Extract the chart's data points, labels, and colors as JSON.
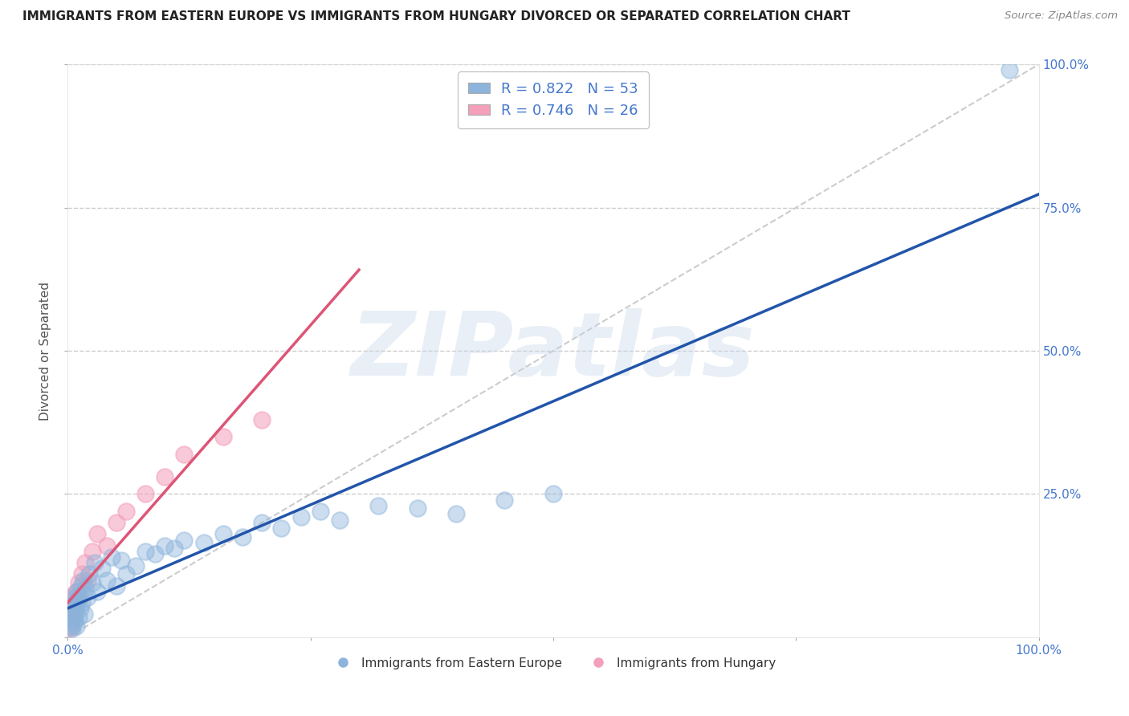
{
  "title": "IMMIGRANTS FROM EASTERN EUROPE VS IMMIGRANTS FROM HUNGARY DIVORCED OR SEPARATED CORRELATION CHART",
  "source": "Source: ZipAtlas.com",
  "xlabel_blue": "Immigrants from Eastern Europe",
  "xlabel_pink": "Immigrants from Hungary",
  "ylabel": "Divorced or Separated",
  "R_blue": 0.822,
  "N_blue": 53,
  "R_pink": 0.746,
  "N_pink": 26,
  "blue_color": "#8CB4DC",
  "pink_color": "#F4A0BB",
  "trend_blue": "#2255AA",
  "trend_pink": "#DD5577",
  "ref_line_color": "#CCCCCC",
  "grid_color": "#CCCCCC",
  "axis_label_color": "#4477CC",
  "title_color": "#222222",
  "source_color": "#888888",
  "watermark_color": "#C8D8EC",
  "background_color": "#FFFFFF",
  "xlim": [
    0,
    100
  ],
  "ylim": [
    0,
    100
  ],
  "watermark_text": "ZIPatlas",
  "blue_x": [
    0.3,
    0.4,
    0.5,
    0.5,
    0.6,
    0.6,
    0.7,
    0.7,
    0.8,
    0.8,
    0.9,
    0.9,
    1.0,
    1.0,
    1.1,
    1.2,
    1.3,
    1.4,
    1.5,
    1.6,
    1.7,
    1.8,
    2.0,
    2.2,
    2.5,
    2.8,
    3.0,
    3.5,
    4.0,
    4.5,
    5.0,
    5.5,
    6.0,
    7.0,
    8.0,
    9.0,
    10.0,
    11.0,
    12.0,
    14.0,
    16.0,
    18.0,
    20.0,
    22.0,
    24.0,
    26.0,
    28.0,
    32.0,
    36.0,
    40.0,
    45.0,
    50.0,
    97.0
  ],
  "blue_y": [
    2.0,
    3.5,
    1.5,
    4.0,
    5.0,
    2.5,
    6.0,
    3.0,
    4.5,
    7.0,
    5.5,
    2.0,
    6.5,
    8.0,
    3.5,
    7.5,
    5.0,
    9.0,
    6.0,
    10.0,
    4.0,
    8.5,
    7.0,
    11.0,
    9.5,
    13.0,
    8.0,
    12.0,
    10.0,
    14.0,
    9.0,
    13.5,
    11.0,
    12.5,
    15.0,
    14.5,
    16.0,
    15.5,
    17.0,
    16.5,
    18.0,
    17.5,
    20.0,
    19.0,
    21.0,
    22.0,
    20.5,
    23.0,
    22.5,
    21.5,
    24.0,
    25.0,
    99.0
  ],
  "pink_x": [
    0.2,
    0.3,
    0.4,
    0.5,
    0.5,
    0.6,
    0.7,
    0.7,
    0.8,
    0.9,
    1.0,
    1.1,
    1.2,
    1.5,
    1.8,
    2.0,
    2.5,
    3.0,
    4.0,
    5.0,
    6.0,
    8.0,
    10.0,
    12.0,
    16.0,
    20.0
  ],
  "pink_y": [
    1.5,
    3.0,
    2.0,
    4.0,
    5.5,
    3.5,
    6.0,
    7.5,
    5.0,
    8.0,
    6.5,
    9.5,
    7.0,
    11.0,
    13.0,
    10.0,
    15.0,
    18.0,
    16.0,
    20.0,
    22.0,
    25.0,
    28.0,
    32.0,
    35.0,
    38.0
  ]
}
